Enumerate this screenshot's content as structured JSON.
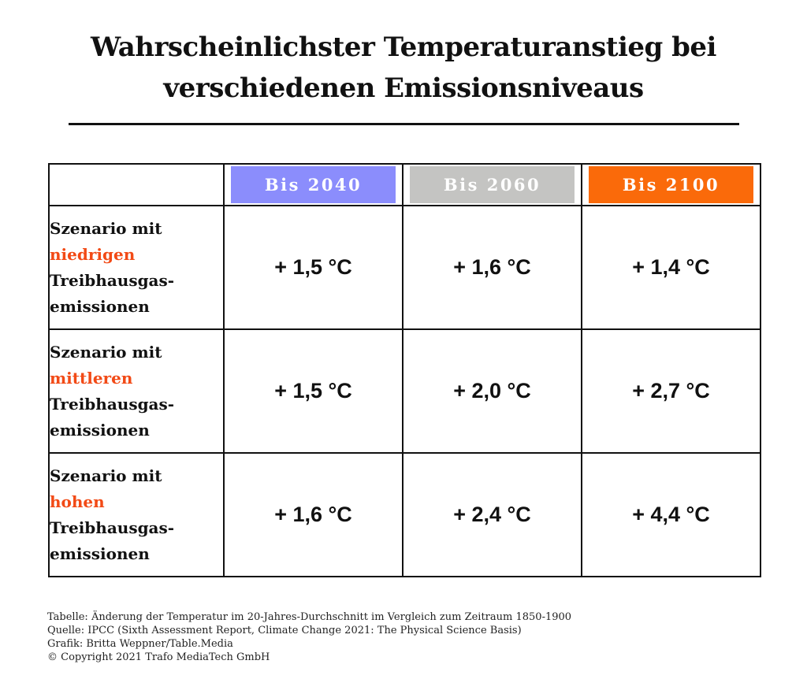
{
  "title_line1": "Wahrscheinlichster Temperaturanstieg bei",
  "title_line2": "verschiedenen Emissionsniveaus",
  "colors": {
    "bis_2040": "#8b8dfc",
    "bis_2060": "#c4c4c2",
    "bis_2100": "#fa6a0a",
    "highlight": "#f24a16"
  },
  "chart_data": {
    "type": "table",
    "columns": [
      "Bis 2040",
      "Bis 2060",
      "Bis 2100"
    ],
    "rows": [
      {
        "label_prefix": "Szenario mit",
        "level": "niedrigen",
        "label_line3": "Treibhausgas-",
        "label_line4": "emissionen",
        "values": [
          "+ 1,5 °C",
          "+ 1,6 °C",
          "+ 1,4 °C"
        ]
      },
      {
        "label_prefix": "Szenario mit",
        "level": "mittleren",
        "label_line3": "Treibhausgas-",
        "label_line4": "emissionen",
        "values": [
          "+ 1,5 °C",
          "+ 2,0 °C",
          "+ 2,7 °C"
        ]
      },
      {
        "label_prefix": "Szenario mit",
        "level": "hohen",
        "label_line3": "Treibhausgas-",
        "label_line4": "emissionen",
        "values": [
          "+ 1,6 °C",
          "+ 2,4 °C",
          "+ 4,4 °C"
        ]
      }
    ]
  },
  "footer": {
    "line1": "Tabelle: Änderung der Temperatur im 20-Jahres-Durchschnitt im Vergleich zum Zeitraum 1850-1900",
    "line2": "Quelle: IPCC (Sixth Assessment Report, Climate Change 2021: The Physical Science Basis)",
    "line3": "Grafik: Britta Weppner/Table.Media",
    "line4": "© Copyright 2021 Trafo MediaTech GmbH"
  }
}
